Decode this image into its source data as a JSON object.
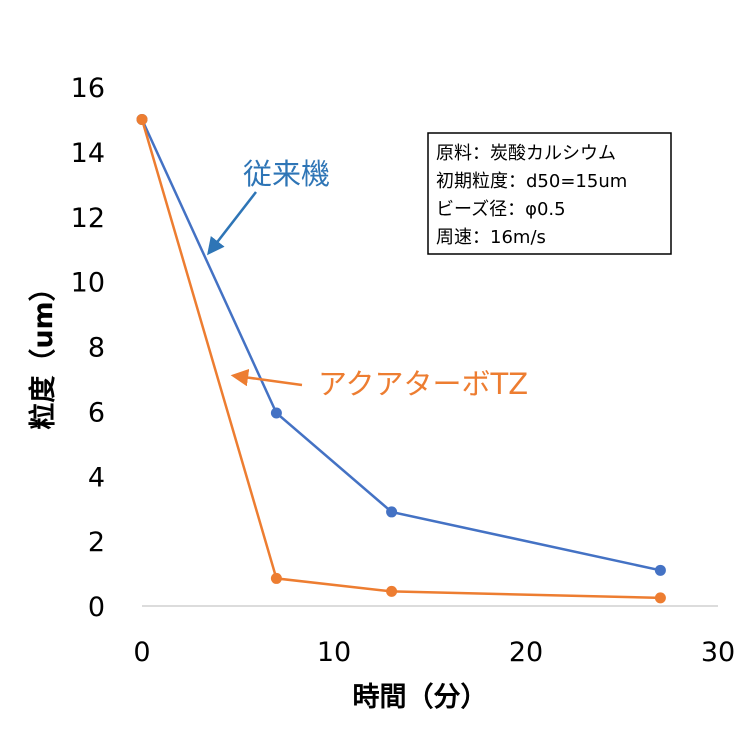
{
  "chart_data": {
    "type": "line",
    "title": "",
    "xlabel": "時間（分）",
    "ylabel": "粒度（um）",
    "xlim": [
      0,
      30
    ],
    "ylim": [
      0,
      16
    ],
    "x_ticks": [
      0,
      10,
      20,
      30
    ],
    "y_ticks": [
      0,
      2,
      4,
      6,
      8,
      10,
      12,
      14,
      16
    ],
    "grid": false,
    "legend": "none",
    "series": [
      {
        "name": "従来機",
        "color": "#4472C4",
        "points": [
          {
            "x": 0,
            "y": 15.0
          },
          {
            "x": 7,
            "y": 5.95
          },
          {
            "x": 13,
            "y": 2.9
          },
          {
            "x": 27,
            "y": 1.1
          }
        ]
      },
      {
        "name": "アクアターボTZ",
        "color": "#ED7D31",
        "points": [
          {
            "x": 0,
            "y": 15.0
          },
          {
            "x": 7,
            "y": 0.85
          },
          {
            "x": 13,
            "y": 0.45
          },
          {
            "x": 27,
            "y": 0.25
          }
        ]
      }
    ],
    "annotations": [
      {
        "text": "従来機",
        "color": "#2E75B6",
        "arrow_to": {
          "x": 3.5,
          "y": 10.9
        }
      },
      {
        "text": "アクアターボTZ",
        "color": "#ED7D31",
        "arrow_to": {
          "x": 4.8,
          "y": 7.1
        }
      }
    ],
    "info_box": {
      "lines": [
        "原料：炭酸カルシウム",
        "初期粒度：d50=15um",
        "ビーズ径：φ0.5",
        "周速：16m/s"
      ]
    }
  }
}
